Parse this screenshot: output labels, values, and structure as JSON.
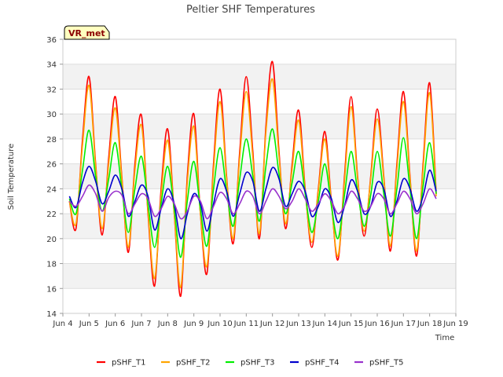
{
  "chart_data": {
    "type": "line",
    "title": "Peltier SHF Temperatures",
    "xlabel": "Time",
    "ylabel": "Soil Temperature",
    "badge": "VR_met",
    "x_ticks": [
      "Jun 4",
      "Jun 5",
      "Jun 6",
      "Jun 7",
      "Jun 8",
      "Jun 9",
      "Jun 10",
      "Jun 11",
      "Jun 12",
      "Jun 13",
      "Jun 14",
      "Jun 15",
      "Jun 16",
      "Jun 17",
      "Jun 18",
      "Jun 19"
    ],
    "xlim": [
      4,
      19
    ],
    "ylim": [
      14,
      36
    ],
    "y_ticks": [
      14,
      16,
      18,
      20,
      22,
      24,
      26,
      28,
      30,
      32,
      34,
      36
    ],
    "grid": "alternating horizontal bands",
    "legend_position": "bottom",
    "x_note": "x values are day-of-June (fractional)",
    "series": [
      {
        "name": "pSHF_T1",
        "color": "#ff0000",
        "x": [
          4.25,
          4.5,
          4.75,
          5.0,
          5.25,
          5.5,
          5.75,
          6.0,
          6.25,
          6.5,
          6.75,
          7.0,
          7.25,
          7.5,
          7.75,
          8.0,
          8.25,
          8.5,
          8.75,
          9.0,
          9.25,
          9.5,
          9.75,
          10.0,
          10.25,
          10.5,
          10.75,
          11.0,
          11.25,
          11.5,
          11.75,
          12.0,
          12.25,
          12.5,
          12.75,
          13.0,
          13.25,
          13.5,
          13.75,
          14.0,
          14.25,
          14.5,
          14.75,
          15.0,
          15.25,
          15.5,
          15.75,
          16.0,
          16.25,
          16.5,
          16.75,
          17.0,
          17.25,
          17.5,
          17.75,
          18.0,
          18.25
        ],
        "y": [
          23.0,
          20.8,
          28.0,
          33.0,
          26.0,
          20.3,
          26.5,
          31.4,
          25.0,
          18.9,
          26.0,
          29.9,
          22.0,
          16.2,
          24.0,
          28.8,
          22.0,
          15.4,
          25.0,
          30.0,
          22.0,
          17.2,
          26.0,
          32.0,
          25.0,
          19.6,
          27.0,
          33.0,
          27.0,
          20.0,
          29.0,
          34.2,
          27.0,
          20.8,
          26.0,
          30.3,
          24.0,
          19.3,
          24.0,
          28.6,
          23.0,
          18.3,
          25.0,
          31.4,
          25.0,
          20.2,
          25.0,
          30.4,
          25.0,
          19.0,
          26.0,
          31.8,
          25.0,
          18.6,
          26.0,
          32.5,
          23.6
        ]
      },
      {
        "name": "pSHF_T2",
        "color": "#ffa500",
        "x": [
          4.25,
          4.5,
          4.75,
          5.0,
          5.25,
          5.5,
          5.75,
          6.0,
          6.25,
          6.5,
          6.75,
          7.0,
          7.25,
          7.5,
          7.75,
          8.0,
          8.25,
          8.5,
          8.75,
          9.0,
          9.25,
          9.5,
          9.75,
          10.0,
          10.25,
          10.5,
          10.75,
          11.0,
          11.25,
          11.5,
          11.75,
          12.0,
          12.25,
          12.5,
          12.75,
          13.0,
          13.25,
          13.5,
          13.75,
          14.0,
          14.25,
          14.5,
          14.75,
          15.0,
          15.25,
          15.5,
          15.75,
          16.0,
          16.25,
          16.5,
          16.75,
          17.0,
          17.25,
          17.5,
          17.75,
          18.0,
          18.25
        ],
        "y": [
          23.0,
          21.2,
          27.5,
          32.3,
          25.8,
          20.8,
          26.0,
          30.5,
          24.8,
          19.3,
          25.5,
          29.1,
          22.2,
          16.8,
          23.5,
          27.9,
          22.0,
          16.1,
          24.5,
          29.0,
          22.0,
          17.8,
          25.5,
          31.0,
          24.8,
          20.0,
          26.5,
          31.8,
          26.5,
          20.4,
          28.5,
          32.8,
          26.6,
          21.2,
          25.6,
          29.5,
          23.8,
          19.7,
          23.8,
          28.0,
          22.8,
          18.6,
          24.6,
          30.6,
          24.8,
          20.6,
          24.8,
          29.6,
          24.8,
          19.4,
          25.6,
          31.0,
          24.8,
          19.0,
          25.6,
          31.7,
          23.4
        ]
      },
      {
        "name": "pSHF_T3",
        "color": "#00ee00",
        "x": [
          4.25,
          4.5,
          4.75,
          5.0,
          5.25,
          5.5,
          5.75,
          6.0,
          6.25,
          6.5,
          6.75,
          7.0,
          7.25,
          7.5,
          7.75,
          8.0,
          8.25,
          8.5,
          8.75,
          9.0,
          9.25,
          9.5,
          9.75,
          10.0,
          10.25,
          10.5,
          10.75,
          11.0,
          11.25,
          11.5,
          11.75,
          12.0,
          12.25,
          12.5,
          12.75,
          13.0,
          13.25,
          13.5,
          13.75,
          14.0,
          14.25,
          14.5,
          14.75,
          15.0,
          15.25,
          15.5,
          15.75,
          16.0,
          16.25,
          16.5,
          16.75,
          17.0,
          17.25,
          17.5,
          17.75,
          18.0,
          18.25
        ],
        "y": [
          23.2,
          22.0,
          25.5,
          28.7,
          25.0,
          22.2,
          24.8,
          27.7,
          24.0,
          20.5,
          24.0,
          26.6,
          22.8,
          19.3,
          22.8,
          25.8,
          22.4,
          18.5,
          23.0,
          26.2,
          22.4,
          19.4,
          24.0,
          27.3,
          23.8,
          21.0,
          24.8,
          28.0,
          25.0,
          21.4,
          25.8,
          28.8,
          25.2,
          22.0,
          24.5,
          27.0,
          23.6,
          20.5,
          23.0,
          26.0,
          22.6,
          20.0,
          23.5,
          27.0,
          23.8,
          21.0,
          23.5,
          27.0,
          23.6,
          20.2,
          24.0,
          28.1,
          24.0,
          20.0,
          24.2,
          27.7,
          23.6
        ]
      },
      {
        "name": "pSHF_T4",
        "color": "#0000cd",
        "x": [
          4.25,
          4.5,
          4.75,
          5.0,
          5.25,
          5.5,
          5.75,
          6.0,
          6.25,
          6.5,
          6.75,
          7.0,
          7.25,
          7.5,
          7.75,
          8.0,
          8.25,
          8.5,
          8.75,
          9.0,
          9.25,
          9.5,
          9.75,
          10.0,
          10.25,
          10.5,
          10.75,
          11.0,
          11.25,
          11.5,
          11.75,
          12.0,
          12.25,
          12.5,
          12.75,
          13.0,
          13.25,
          13.5,
          13.75,
          14.0,
          14.25,
          14.5,
          14.75,
          15.0,
          15.25,
          15.5,
          15.75,
          16.0,
          16.25,
          16.5,
          16.75,
          17.0,
          17.25,
          17.5,
          17.75,
          18.0,
          18.25
        ],
        "y": [
          23.4,
          22.5,
          24.5,
          25.8,
          24.6,
          22.8,
          23.8,
          25.1,
          24.0,
          21.8,
          23.0,
          24.3,
          23.4,
          20.7,
          22.4,
          24.0,
          22.8,
          20.0,
          22.0,
          23.6,
          22.8,
          20.6,
          22.8,
          24.8,
          23.8,
          21.8,
          23.6,
          25.3,
          24.6,
          22.2,
          24.0,
          25.7,
          24.8,
          22.6,
          23.6,
          24.6,
          23.8,
          21.8,
          22.6,
          24.0,
          23.2,
          21.3,
          22.6,
          24.7,
          23.8,
          22.0,
          22.6,
          24.5,
          24.0,
          21.8,
          23.0,
          24.8,
          24.0,
          22.2,
          23.4,
          25.5,
          23.8
        ]
      },
      {
        "name": "pSHF_T5",
        "color": "#9932cc",
        "x": [
          4.25,
          4.5,
          4.75,
          5.0,
          5.25,
          5.5,
          5.75,
          6.0,
          6.25,
          6.5,
          6.75,
          7.0,
          7.25,
          7.5,
          7.75,
          8.0,
          8.25,
          8.5,
          8.75,
          9.0,
          9.25,
          9.5,
          9.75,
          10.0,
          10.25,
          10.5,
          10.75,
          11.0,
          11.25,
          11.5,
          11.75,
          12.0,
          12.25,
          12.5,
          12.75,
          13.0,
          13.25,
          13.5,
          13.75,
          14.0,
          14.25,
          14.5,
          14.75,
          15.0,
          15.25,
          15.5,
          15.75,
          16.0,
          16.25,
          16.5,
          16.75,
          17.0,
          17.25,
          17.5,
          17.75,
          18.0,
          18.25
        ],
        "y": [
          23.0,
          22.6,
          23.4,
          24.3,
          23.6,
          22.2,
          23.3,
          23.8,
          23.5,
          22.0,
          22.8,
          23.6,
          23.2,
          21.8,
          22.4,
          23.4,
          22.8,
          21.6,
          22.2,
          23.4,
          23.0,
          21.6,
          22.6,
          23.7,
          23.2,
          22.0,
          22.8,
          23.8,
          23.4,
          22.0,
          23.0,
          24.0,
          23.4,
          22.4,
          23.0,
          24.0,
          23.2,
          22.2,
          22.8,
          23.6,
          23.0,
          22.0,
          22.6,
          23.8,
          23.2,
          22.2,
          22.6,
          23.6,
          23.2,
          22.0,
          22.8,
          23.8,
          23.2,
          22.0,
          22.8,
          24.0,
          23.2
        ]
      }
    ]
  }
}
